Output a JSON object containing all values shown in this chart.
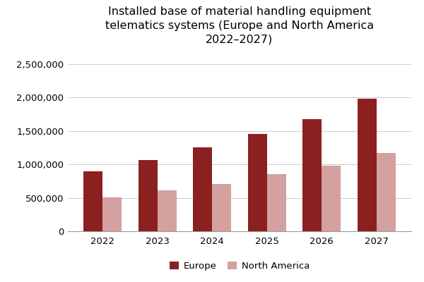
{
  "title": "Installed base of material handling equipment\ntelematics systems (Europe and North America\n2022–2027)",
  "years": [
    2022,
    2023,
    2024,
    2025,
    2026,
    2027
  ],
  "europe": [
    900000,
    1060000,
    1250000,
    1460000,
    1680000,
    1980000
  ],
  "north_america": [
    510000,
    610000,
    710000,
    850000,
    980000,
    1170000
  ],
  "europe_color": "#8B2020",
  "north_america_color": "#D4A0A0",
  "background_color": "#FFFFFF",
  "ylim": [
    0,
    2700000
  ],
  "yticks": [
    0,
    500000,
    1000000,
    1500000,
    2000000,
    2500000
  ],
  "ytick_labels": [
    "0",
    "500,000",
    "1,000,000",
    "1,500,000",
    "2,000,000",
    "2,500,000"
  ],
  "legend_labels": [
    "Europe",
    "North America"
  ],
  "title_fontsize": 11.5,
  "tick_fontsize": 9.5,
  "legend_fontsize": 9.5,
  "bar_width": 0.35,
  "grid_color": "#CCCCCC"
}
